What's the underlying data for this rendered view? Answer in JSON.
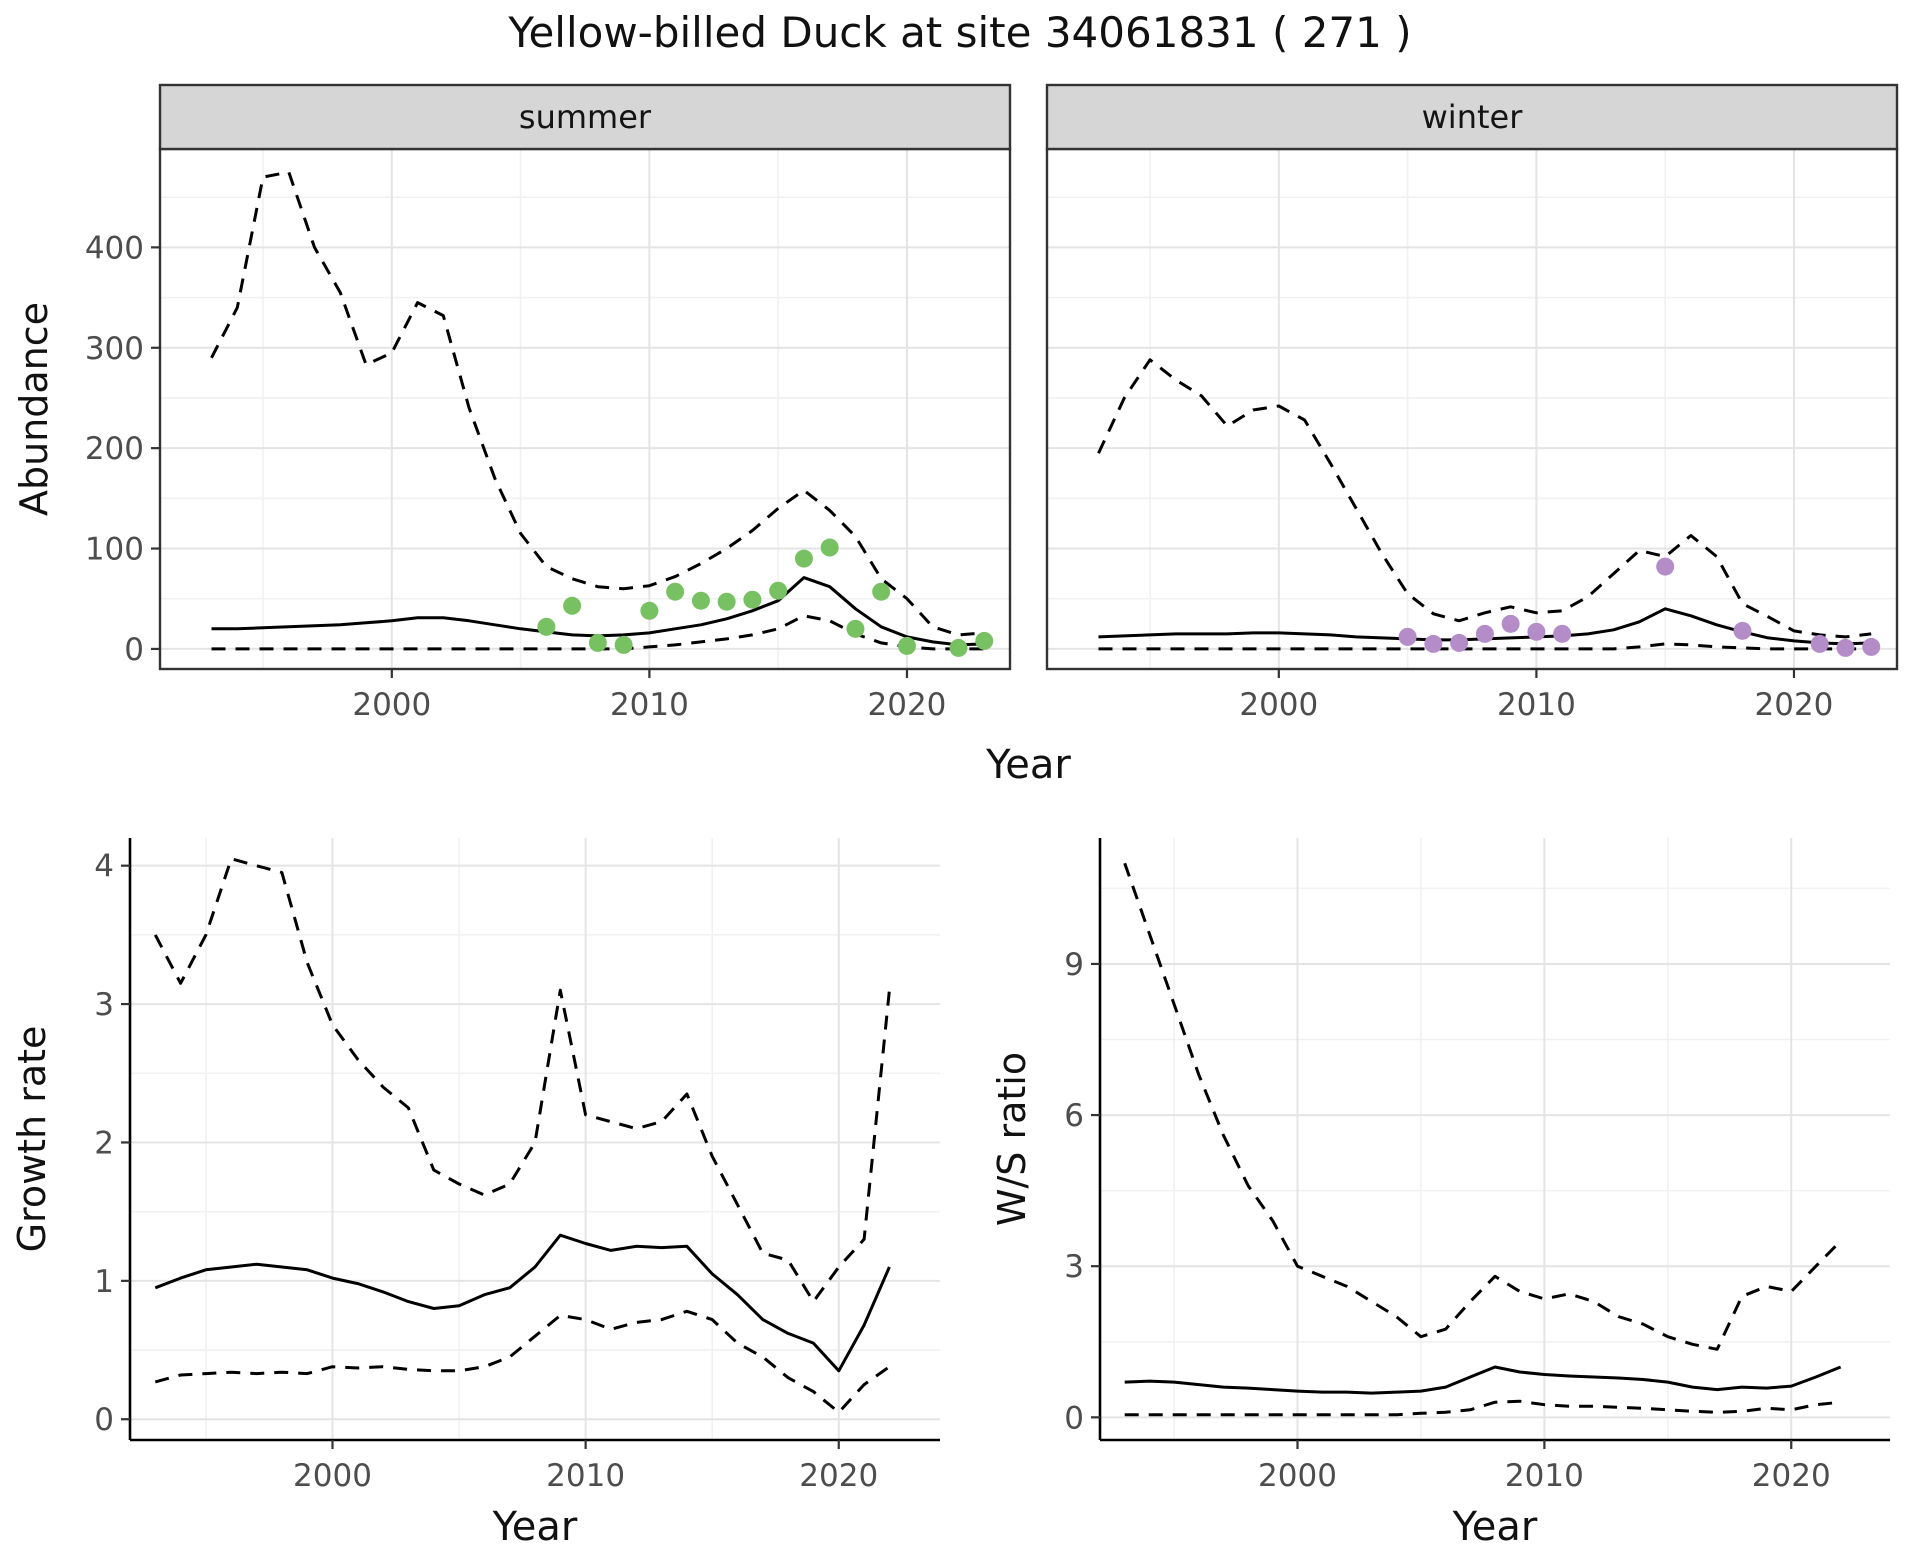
{
  "title": "Yellow-billed Duck at site 34061831 ( 271 )",
  "colors": {
    "summer_points": "#78c163",
    "winter_points": "#b48cc8",
    "line": "#000000",
    "strip_bg": "#d6d6d6",
    "grid_major": "#e4e4e4",
    "grid_minor": "#f1f1f1",
    "tick_text": "#4d4d4d"
  },
  "chart_data": [
    {
      "type": "line",
      "name": "summer-abundance",
      "facet_label": "summer",
      "xlabel": "Year",
      "ylabel": "Abundance",
      "xlim": [
        1991,
        2024
      ],
      "ylim": [
        -20,
        498
      ],
      "xticks": [
        2000,
        2010,
        2020
      ],
      "yticks": [
        0,
        100,
        200,
        300,
        400
      ],
      "show_y_labels": true,
      "frame": "full",
      "x": [
        1993,
        1994,
        1995,
        1996,
        1997,
        1998,
        1999,
        2000,
        2001,
        2002,
        2003,
        2004,
        2005,
        2006,
        2007,
        2008,
        2009,
        2010,
        2011,
        2012,
        2013,
        2014,
        2015,
        2016,
        2017,
        2018,
        2019,
        2020,
        2021,
        2022,
        2023
      ],
      "series": [
        {
          "name": "upper_ci",
          "style": "dashed",
          "values": [
            290,
            340,
            470,
            475,
            400,
            355,
            283,
            295,
            345,
            332,
            240,
            170,
            115,
            82,
            70,
            62,
            60,
            63,
            72,
            85,
            100,
            118,
            140,
            158,
            138,
            112,
            70,
            50,
            22,
            14,
            16
          ]
        },
        {
          "name": "mean",
          "style": "solid",
          "values": [
            20,
            20,
            21,
            22,
            23,
            24,
            26,
            28,
            31,
            31,
            28,
            24,
            20,
            17,
            14,
            13,
            14,
            16,
            20,
            24,
            30,
            38,
            48,
            71,
            62,
            40,
            22,
            12,
            7,
            4,
            5
          ]
        },
        {
          "name": "lower_ci",
          "style": "dashed",
          "values": [
            0,
            0,
            0,
            0,
            0,
            0,
            0,
            0,
            0,
            0,
            0,
            0,
            0,
            0,
            0,
            0,
            0,
            2,
            4,
            7,
            10,
            14,
            20,
            33,
            28,
            15,
            6,
            2,
            0,
            0,
            0
          ]
        }
      ],
      "points": {
        "name": "observed-counts",
        "color": "#78c163",
        "x": [
          2006,
          2007,
          2008,
          2009,
          2010,
          2011,
          2012,
          2013,
          2014,
          2015,
          2016,
          2017,
          2018,
          2019,
          2020,
          2022,
          2023
        ],
        "y": [
          22,
          43,
          6,
          4,
          38,
          57,
          48,
          47,
          49,
          58,
          90,
          101,
          20,
          57,
          3,
          1,
          8
        ]
      }
    },
    {
      "type": "line",
      "name": "winter-abundance",
      "facet_label": "winter",
      "xlabel": "Year",
      "ylabel": "Abundance",
      "xlim": [
        1991,
        2024
      ],
      "ylim": [
        -20,
        498
      ],
      "xticks": [
        2000,
        2010,
        2020
      ],
      "yticks": [
        0,
        100,
        200,
        300,
        400
      ],
      "show_y_labels": false,
      "frame": "full",
      "x": [
        1993,
        1994,
        1995,
        1996,
        1997,
        1998,
        1999,
        2000,
        2001,
        2002,
        2003,
        2004,
        2005,
        2006,
        2007,
        2008,
        2009,
        2010,
        2011,
        2012,
        2013,
        2014,
        2015,
        2016,
        2017,
        2018,
        2019,
        2020,
        2021,
        2022,
        2023
      ],
      "series": [
        {
          "name": "upper_ci",
          "style": "dashed",
          "values": [
            195,
            250,
            288,
            268,
            252,
            222,
            238,
            242,
            228,
            185,
            140,
            95,
            55,
            35,
            28,
            36,
            42,
            36,
            38,
            52,
            75,
            98,
            92,
            113,
            92,
            45,
            32,
            18,
            14,
            12,
            15
          ]
        },
        {
          "name": "mean",
          "style": "solid",
          "values": [
            12,
            13,
            14,
            15,
            15,
            15,
            16,
            16,
            15,
            14,
            12,
            11,
            10,
            9,
            9,
            10,
            11,
            12,
            13,
            15,
            19,
            27,
            40,
            33,
            24,
            17,
            11,
            8,
            6,
            5,
            6
          ]
        },
        {
          "name": "lower_ci",
          "style": "dashed",
          "values": [
            0,
            0,
            0,
            0,
            0,
            0,
            0,
            0,
            0,
            0,
            0,
            0,
            0,
            0,
            0,
            0,
            0,
            0,
            0,
            0,
            0,
            2,
            5,
            4,
            2,
            1,
            0,
            0,
            0,
            0,
            0
          ]
        }
      ],
      "points": {
        "name": "observed-counts",
        "color": "#b48cc8",
        "x": [
          2005,
          2006,
          2007,
          2008,
          2009,
          2010,
          2011,
          2015,
          2018,
          2021,
          2022,
          2023
        ],
        "y": [
          12,
          5,
          6,
          15,
          25,
          17,
          15,
          82,
          18,
          5,
          1,
          2
        ]
      }
    },
    {
      "type": "line",
      "name": "growth-rate",
      "facet_label": null,
      "xlabel": "Year",
      "ylabel": "Growth rate",
      "xlim": [
        1992,
        2024
      ],
      "ylim": [
        -0.15,
        4.2
      ],
      "xticks": [
        2000,
        2010,
        2020
      ],
      "yticks": [
        0,
        1,
        2,
        3,
        4
      ],
      "show_y_labels": true,
      "frame": "axes",
      "x": [
        1993,
        1994,
        1995,
        1996,
        1997,
        1998,
        1999,
        2000,
        2001,
        2002,
        2003,
        2004,
        2005,
        2006,
        2007,
        2008,
        2009,
        2010,
        2011,
        2012,
        2013,
        2014,
        2015,
        2016,
        2017,
        2018,
        2019,
        2020,
        2021,
        2022
      ],
      "series": [
        {
          "name": "upper_ci",
          "style": "dashed",
          "values": [
            3.5,
            3.15,
            3.5,
            4.05,
            4.0,
            3.95,
            3.3,
            2.85,
            2.6,
            2.4,
            2.25,
            1.8,
            1.7,
            1.62,
            1.7,
            2.0,
            3.1,
            2.2,
            2.15,
            2.1,
            2.15,
            2.35,
            1.9,
            1.55,
            1.2,
            1.15,
            0.85,
            1.1,
            1.3,
            3.1
          ]
        },
        {
          "name": "mean",
          "style": "solid",
          "values": [
            0.95,
            1.02,
            1.08,
            1.1,
            1.12,
            1.1,
            1.08,
            1.02,
            0.98,
            0.92,
            0.85,
            0.8,
            0.82,
            0.9,
            0.95,
            1.1,
            1.33,
            1.27,
            1.22,
            1.25,
            1.24,
            1.25,
            1.05,
            0.9,
            0.72,
            0.62,
            0.55,
            0.35,
            0.68,
            1.1
          ]
        },
        {
          "name": "lower_ci",
          "style": "dashed",
          "values": [
            0.27,
            0.32,
            0.33,
            0.34,
            0.33,
            0.34,
            0.33,
            0.38,
            0.37,
            0.38,
            0.36,
            0.35,
            0.35,
            0.38,
            0.45,
            0.6,
            0.75,
            0.72,
            0.65,
            0.7,
            0.72,
            0.78,
            0.72,
            0.55,
            0.45,
            0.3,
            0.2,
            0.05,
            0.25,
            0.38
          ]
        }
      ],
      "points": null
    },
    {
      "type": "line",
      "name": "winter-summer-ratio",
      "facet_label": null,
      "xlabel": "Year",
      "ylabel": "W/S ratio",
      "xlim": [
        1992,
        2024
      ],
      "ylim": [
        -0.45,
        11.5
      ],
      "xticks": [
        2000,
        2010,
        2020
      ],
      "yticks": [
        0,
        3,
        6,
        9
      ],
      "show_y_labels": true,
      "frame": "axes",
      "x": [
        1993,
        1994,
        1995,
        1996,
        1997,
        1998,
        1999,
        2000,
        2001,
        2002,
        2003,
        2004,
        2005,
        2006,
        2007,
        2008,
        2009,
        2010,
        2011,
        2012,
        2013,
        2014,
        2015,
        2016,
        2017,
        2018,
        2019,
        2020,
        2021,
        2022
      ],
      "series": [
        {
          "name": "upper_ci",
          "style": "dashed",
          "values": [
            11.0,
            9.6,
            8.2,
            6.8,
            5.6,
            4.6,
            3.9,
            3.0,
            2.8,
            2.6,
            2.3,
            2.0,
            1.6,
            1.75,
            2.3,
            2.8,
            2.5,
            2.35,
            2.45,
            2.3,
            2.0,
            1.85,
            1.6,
            1.45,
            1.35,
            2.4,
            2.6,
            2.5,
            3.0,
            3.5
          ]
        },
        {
          "name": "mean",
          "style": "solid",
          "values": [
            0.7,
            0.72,
            0.7,
            0.65,
            0.6,
            0.58,
            0.55,
            0.52,
            0.5,
            0.5,
            0.48,
            0.5,
            0.52,
            0.6,
            0.8,
            1.0,
            0.9,
            0.85,
            0.82,
            0.8,
            0.78,
            0.75,
            0.7,
            0.6,
            0.55,
            0.6,
            0.58,
            0.62,
            0.8,
            1.0
          ]
        },
        {
          "name": "lower_ci",
          "style": "dashed",
          "values": [
            0.05,
            0.05,
            0.05,
            0.05,
            0.05,
            0.05,
            0.05,
            0.05,
            0.05,
            0.05,
            0.05,
            0.05,
            0.08,
            0.1,
            0.15,
            0.3,
            0.32,
            0.25,
            0.22,
            0.22,
            0.2,
            0.18,
            0.15,
            0.12,
            0.1,
            0.12,
            0.18,
            0.15,
            0.25,
            0.3
          ]
        }
      ],
      "points": null
    }
  ]
}
